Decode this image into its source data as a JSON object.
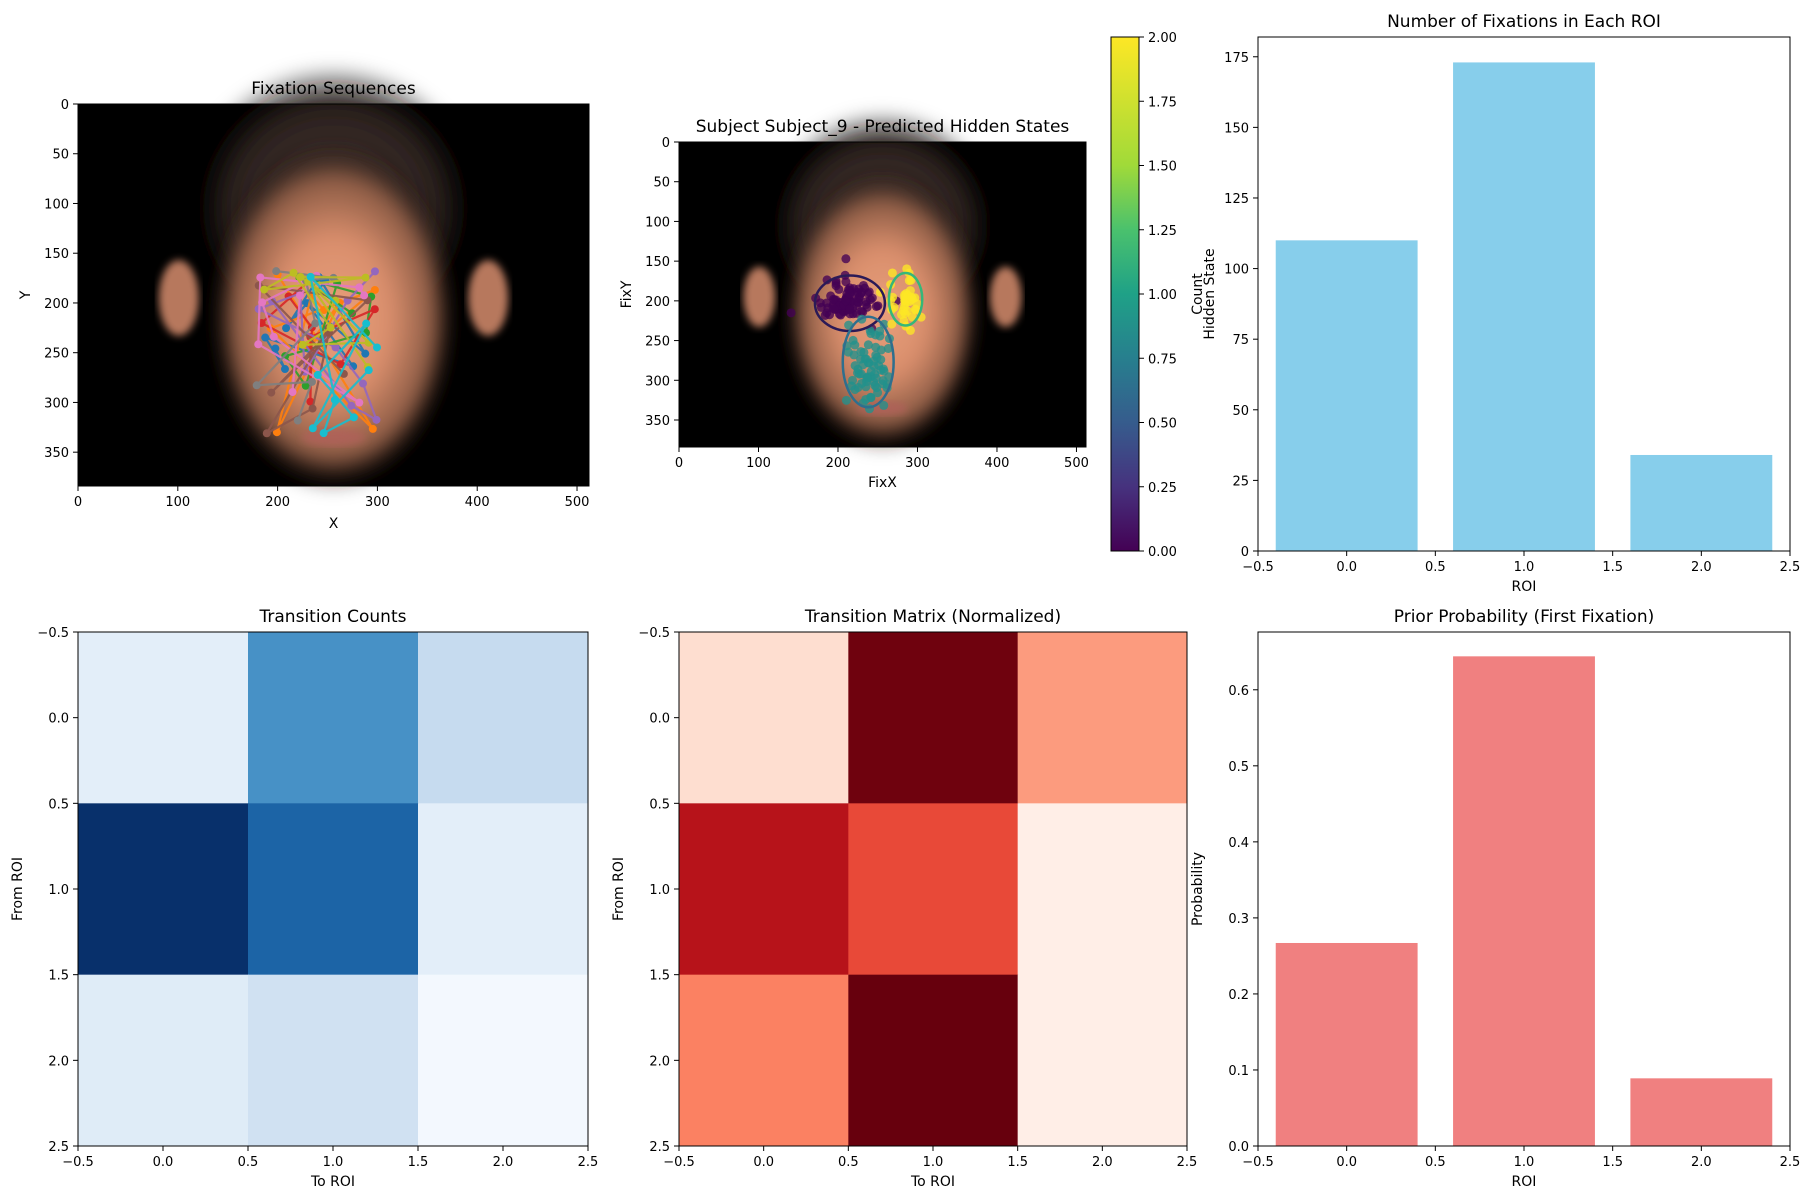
{
  "chart_data": [
    {
      "id": "fixation-sequences",
      "type": "scatter",
      "title": "Fixation Sequences",
      "xlabel": "X",
      "ylabel": "Y",
      "xlim": [
        0,
        512
      ],
      "ylim": [
        384,
        0
      ],
      "xticks": [
        0,
        100,
        200,
        300,
        400,
        500
      ],
      "yticks": [
        0,
        50,
        100,
        150,
        200,
        250,
        300,
        350
      ],
      "background": "face-image",
      "series_colors": [
        "#1f77b4",
        "#ff7f0e",
        "#2ca02c",
        "#d62728",
        "#9467bd",
        "#8c564b",
        "#e377c2",
        "#7f7f7f",
        "#bcbd22",
        "#17becf"
      ],
      "point_range": {
        "x": [
          175,
          310
        ],
        "y": [
          165,
          340
        ]
      }
    },
    {
      "id": "hidden-states",
      "type": "scatter",
      "title": "Subject Subject_9 - Predicted Hidden States",
      "xlabel": "FixX",
      "ylabel": "FixY",
      "xlim": [
        0,
        512
      ],
      "ylim": [
        384,
        0
      ],
      "xticks": [
        0,
        100,
        200,
        300,
        400,
        500
      ],
      "yticks": [
        0,
        50,
        100,
        150,
        200,
        250,
        300,
        350
      ],
      "background": "face-image",
      "colorbar": {
        "label": "Hidden State",
        "range": [
          0,
          2
        ],
        "ticks": [
          "0.00",
          "0.25",
          "0.50",
          "0.75",
          "1.00",
          "1.25",
          "1.50",
          "1.75",
          "2.00"
        ],
        "colormap": "viridis"
      },
      "states": [
        {
          "state": 0,
          "color": "#440154",
          "center": [
            215,
            200
          ],
          "radius": [
            32,
            22
          ]
        },
        {
          "state": 1,
          "color": "#21918c",
          "center": [
            238,
            280
          ],
          "radius": [
            30,
            50
          ]
        },
        {
          "state": 2,
          "color": "#fde725",
          "center": [
            285,
            197
          ],
          "radius": [
            20,
            30
          ]
        }
      ],
      "ellipses": [
        {
          "state": 0,
          "cx": 215,
          "cy": 203,
          "rx": 44,
          "ry": 35,
          "color": "#2b1a57"
        },
        {
          "state": 1,
          "cx": 238,
          "cy": 277,
          "rx": 32,
          "ry": 57,
          "color": "#2e6f8e"
        },
        {
          "state": 2,
          "cx": 285,
          "cy": 198,
          "rx": 21,
          "ry": 33,
          "color": "#35b779"
        }
      ]
    },
    {
      "id": "fixation-counts",
      "type": "bar",
      "title": "Number of Fixations in Each ROI",
      "xlabel": "ROI",
      "ylabel": "Count",
      "categories": [
        0,
        1,
        2
      ],
      "values": [
        110,
        173,
        34
      ],
      "xlim": [
        -0.5,
        2.5
      ],
      "ylim": [
        0,
        182
      ],
      "xticks": [
        "−0.5",
        "0.0",
        "0.5",
        "1.0",
        "1.5",
        "2.0",
        "2.5"
      ],
      "yticks": [
        0,
        25,
        50,
        75,
        100,
        125,
        150,
        175
      ],
      "color": "#87ceeb"
    },
    {
      "id": "transition-counts",
      "type": "heatmap",
      "title": "Transition Counts",
      "xlabel": "To ROI",
      "ylabel": "From ROI",
      "colormap": "Blues",
      "ticks": [
        "−0.5",
        "0.0",
        "0.5",
        "1.0",
        "1.5",
        "2.0",
        "2.5"
      ],
      "matrix": [
        [
          0.1,
          0.62,
          0.25
        ],
        [
          1.0,
          0.8,
          0.1
        ],
        [
          0.12,
          0.2,
          0.02
        ]
      ]
    },
    {
      "id": "transition-matrix",
      "type": "heatmap",
      "title": "Transition Matrix (Normalized)",
      "xlabel": "To ROI",
      "ylabel": "From ROI",
      "colormap": "Reds",
      "ticks": [
        "−0.5",
        "0.0",
        "0.5",
        "1.0",
        "1.5",
        "2.0",
        "2.5"
      ],
      "matrix": [
        [
          0.1,
          0.98,
          0.35
        ],
        [
          0.8,
          0.6,
          0.03
        ],
        [
          0.43,
          1.0,
          0.03
        ]
      ]
    },
    {
      "id": "prior-probability",
      "type": "bar",
      "title": "Prior Probability (First Fixation)",
      "xlabel": "ROI",
      "ylabel": "Probability",
      "categories": [
        0,
        1,
        2
      ],
      "values": [
        0.267,
        0.644,
        0.089
      ],
      "xlim": [
        -0.5,
        2.5
      ],
      "ylim": [
        0,
        0.676
      ],
      "xticks": [
        "−0.5",
        "0.0",
        "0.5",
        "1.0",
        "1.5",
        "2.0",
        "2.5"
      ],
      "yticks": [
        "0.0",
        "0.1",
        "0.2",
        "0.3",
        "0.4",
        "0.5",
        "0.6"
      ],
      "color": "#f08080"
    }
  ]
}
